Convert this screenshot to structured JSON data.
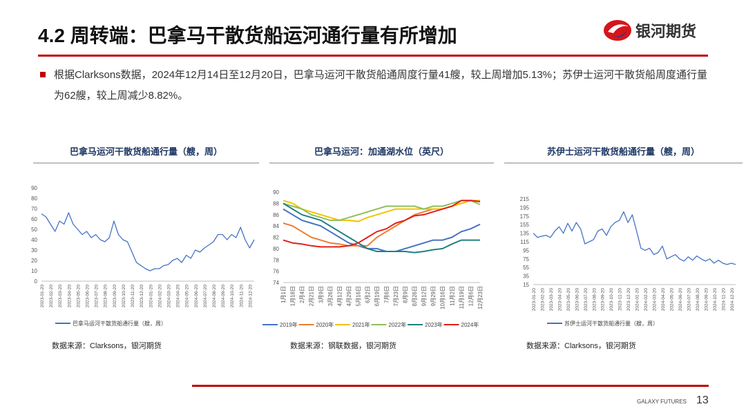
{
  "header": {
    "title": "4.2 周转端：巴拿马干散货船运河通行量有所增加",
    "logo": "银河期货"
  },
  "bullet": "根据Clarksons数据，2024年12月14日至12月20日，巴拿马运河干散货船通周度行量41艘，较上周增加5.13%；苏伊士运河干散货船周度通行量为62艘，较上周减少8.82%。",
  "chart_data": [
    {
      "type": "line",
      "title": "巴拿马运河干散货船通行量（艘，周）",
      "source": "数据来源：Clarksons，银河期货",
      "categories": [
        "2023-01-20",
        null,
        "2023-02-20",
        null,
        "2023-03-20",
        null,
        "2023-04-20",
        null,
        "2023-05-20",
        null,
        "2023-06-20",
        null,
        "2023-07-20",
        null,
        "2023-08-20",
        null,
        "2023-09-20",
        null,
        "2023-10-20",
        null,
        "2023-11-20",
        null,
        "2023-12-20",
        null,
        "2024-01-20",
        null,
        "2024-02-20",
        null,
        "2024-03-20",
        null,
        "2024-04-20",
        null,
        "2024-05-20",
        null,
        "2024-06-20",
        null,
        "2024-07-20",
        null,
        "2024-08-20",
        null,
        "2024-09-20",
        null,
        "2024-10-20",
        null,
        "2024-11-20",
        null,
        "2024-12-20",
        null
      ],
      "series": [
        {
          "name": "巴拿马运河干散货船通行量（艘，周）",
          "color": "#4472c4",
          "values": [
            65,
            62,
            55,
            48,
            58,
            55,
            66,
            55,
            50,
            45,
            48,
            42,
            45,
            40,
            38,
            42,
            58,
            45,
            40,
            38,
            28,
            18,
            15,
            12,
            10,
            12,
            12,
            15,
            16,
            20,
            22,
            18,
            25,
            22,
            30,
            28,
            32,
            35,
            38,
            45,
            45,
            40,
            45,
            42,
            52,
            40,
            32,
            40
          ]
        }
      ],
      "ylim": [
        0,
        90
      ],
      "yticks": [
        0,
        10,
        20,
        30,
        40,
        50,
        60,
        70,
        80,
        90
      ]
    },
    {
      "type": "line",
      "title": "巴拿马运河：加通湖水位（英尺）",
      "source": "数据来源：钢联数据，银河期货",
      "categories": [
        "1月1日",
        "1月18日",
        "2月4日",
        "2月21日",
        "3月9日",
        "3月26日",
        "4月12日",
        "4月29日",
        "5月16日",
        "6月2日",
        "6月19日",
        "7月6日",
        "7月23日",
        "8月9日",
        "8月26日",
        "9月12日",
        "9月29日",
        "10月16日",
        "11月2日",
        "11月19日",
        "12月6日",
        "12月23日"
      ],
      "series": [
        {
          "name": "2019年",
          "color": "#4472c4",
          "values": [
            87,
            86,
            85,
            84.5,
            84,
            83,
            82,
            81,
            80.5,
            80,
            80,
            79.5,
            79.5,
            80,
            80.5,
            81,
            81.5,
            81.5,
            82,
            83,
            83.5,
            84.3
          ]
        },
        {
          "name": "2020年",
          "color": "#ed7d31",
          "values": [
            84.5,
            84,
            83,
            82,
            81.5,
            81,
            80.8,
            80.5,
            80.5,
            80.5,
            82,
            83,
            84,
            85,
            86,
            86.5,
            87,
            87,
            87.5,
            88,
            88.5,
            88.3
          ]
        },
        {
          "name": "2021年",
          "color": "#f2c200",
          "values": [
            88.5,
            88,
            87,
            86.5,
            86,
            85.5,
            85,
            85,
            84.8,
            85.5,
            86,
            86.5,
            87,
            87,
            87,
            87,
            87,
            87,
            87.5,
            88,
            88.5,
            88.5
          ]
        },
        {
          "name": "2022年",
          "color": "#8fbf5a",
          "values": [
            88,
            87.5,
            87,
            86,
            85.5,
            85,
            85,
            85.5,
            86,
            86.5,
            87,
            87.5,
            87.5,
            87.5,
            87.5,
            87,
            87.5,
            87.5,
            88,
            88.5,
            88.5,
            87.8
          ]
        },
        {
          "name": "2023年",
          "color": "#1f8080",
          "values": [
            88,
            87,
            86,
            85.5,
            85,
            84,
            83,
            82,
            81,
            80,
            79.5,
            79.5,
            79.5,
            79.5,
            79.3,
            79.5,
            79.8,
            80,
            80.8,
            81.5,
            81.5,
            81.5
          ]
        },
        {
          "name": "2024年",
          "color": "#e0201b",
          "values": [
            81.5,
            81,
            80.8,
            80.5,
            80.3,
            80.3,
            80.3,
            80.5,
            81,
            82,
            83,
            83.5,
            84.5,
            85,
            85.8,
            86,
            86.5,
            87,
            87.5,
            88.5,
            88.5,
            88.3
          ]
        }
      ],
      "ylim": [
        74,
        90
      ],
      "yticks": [
        74,
        76,
        78,
        80,
        82,
        84,
        86,
        88,
        90
      ]
    },
    {
      "type": "line",
      "title": "苏伊士运河干散货船通行量（艘，周）",
      "source": "数据来源：Clarksons，银河期货",
      "categories": [
        "2023-01-20",
        null,
        "2023-02-20",
        null,
        "2023-03-20",
        null,
        "2023-04-20",
        null,
        "2023-05-20",
        null,
        "2023-06-20",
        null,
        "2023-07-20",
        null,
        "2023-08-20",
        null,
        "2023-09-20",
        null,
        "2023-10-20",
        null,
        "2023-11-20",
        null,
        "2023-12-20",
        null,
        "2024-01-20",
        null,
        "2024-02-20",
        null,
        "2024-03-20",
        null,
        "2024-04-20",
        null,
        "2024-05-20",
        null,
        "2024-06-20",
        null,
        "2024-07-20",
        null,
        "2024-08-20",
        null,
        "2024-09-20",
        null,
        "2024-10-20",
        null,
        "2024-11-20",
        null,
        "2024-12-20",
        null
      ],
      "series": [
        {
          "name": "苏伊士运河干散货船通行量（艘，周）",
          "color": "#4472c4",
          "values": [
            135,
            125,
            128,
            130,
            125,
            140,
            150,
            135,
            158,
            140,
            160,
            145,
            110,
            115,
            120,
            140,
            145,
            130,
            150,
            160,
            165,
            185,
            160,
            178,
            140,
            100,
            95,
            100,
            85,
            90,
            105,
            75,
            80,
            85,
            75,
            70,
            80,
            72,
            82,
            75,
            70,
            75,
            65,
            72,
            65,
            62,
            65,
            62
          ]
        }
      ],
      "ylim": [
        15,
        215
      ],
      "yticks": [
        15,
        35,
        55,
        75,
        95,
        115,
        135,
        155,
        175,
        195,
        215
      ]
    }
  ],
  "footer": {
    "brand": "GALAXY FUTURES",
    "page": "13"
  }
}
